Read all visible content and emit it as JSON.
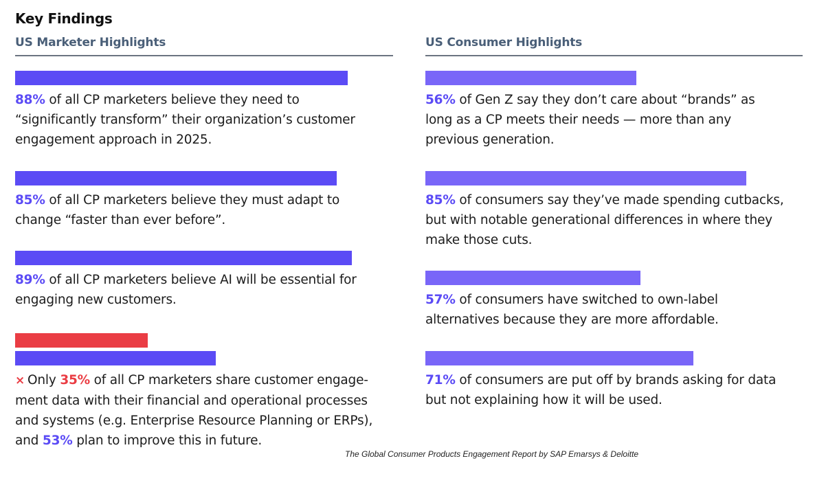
{
  "title": "Key Findings",
  "colors": {
    "bar_primary": "#5b4bf5",
    "bar_secondary": "#7966f8",
    "bar_alert": "#ea3d44",
    "heading": "#4a5f78"
  },
  "left": {
    "heading": "US Marketer Highlights",
    "items": [
      {
        "value": 88,
        "pct": "88%",
        "text": " of all CP marketers believe they need to “significantly transform” their organization’s customer engagement approach in 2025."
      },
      {
        "value": 85,
        "pct": "85%",
        "text": " of all CP marketers believe they must adapt to change “faster than ever before”."
      },
      {
        "value": 89,
        "pct": "89%",
        "text": " of all CP marketers believe AI will be essential for engaging new customers."
      }
    ],
    "last": {
      "value_red": 35,
      "value_blue": 53,
      "x_icon": "×",
      "prefix": "Only ",
      "pct1": "35%",
      "text1": " of all CP marketers share customer engage-ment data with their financial and operational processes and systems (e.g. Enterprise Resource Planning or ERPs), and ",
      "pct2": "53%",
      "text2": " plan to improve this in future."
    }
  },
  "right": {
    "heading": "US Consumer Highlights",
    "items": [
      {
        "value": 56,
        "pct": "56%",
        "text": " of Gen Z say they don’t care about “brands” as long as a CP meets their needs — more than any previous generation."
      },
      {
        "value": 85,
        "pct": "85%",
        "text": " of consumers say they’ve made spending cutbacks, but with notable generational differences in where they make those cuts."
      },
      {
        "value": 57,
        "pct": "57%",
        "text": " of consumers have switched to own-label alternatives because they are more affordable."
      },
      {
        "value": 71,
        "pct": "71%",
        "text": " of consumers are put off by brands asking for data but not explaining how it will be used."
      }
    ]
  },
  "source": "The Global Consumer Products Engagement Report by SAP Emarsys & Deloitte"
}
